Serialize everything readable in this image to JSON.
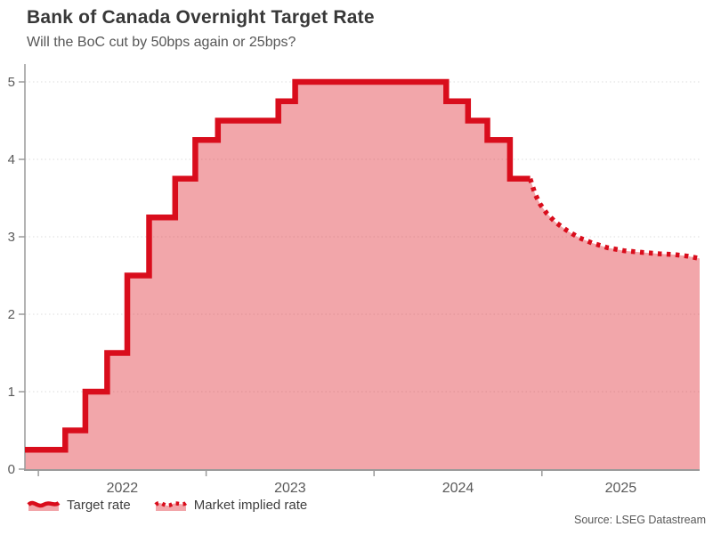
{
  "page": {
    "source": "Source: LSEG Datastream"
  },
  "chart_data": {
    "type": "area",
    "title": "Bank of Canada Overnight Target Rate",
    "subtitle": "Will the BoC cut by 50bps again or 25bps?",
    "legend_position": "bottom",
    "grid": "on",
    "x_axis": {
      "min": 2021.92,
      "max": 2025.94,
      "tick_years": [
        2022,
        2023,
        2024,
        2025
      ],
      "tick_labels": [
        "2022",
        "2023",
        "2024",
        "2025"
      ]
    },
    "y_axis": {
      "min": 0,
      "max": 5,
      "ticks": [
        0,
        1,
        2,
        3,
        4,
        5
      ],
      "tick_labels": [
        "0",
        "1",
        "2",
        "3",
        "4",
        "5"
      ]
    },
    "colors": {
      "line": "#d90d1c",
      "fill": "rgba(223,42,52,0.42)",
      "grid": "#dddddd",
      "axis": "#9a9a9a",
      "tick_text": "#595959"
    },
    "series": [
      {
        "name": "Target rate",
        "style": "solid-step",
        "points": [
          [
            2021.92,
            0.25
          ],
          [
            2022.16,
            0.5
          ],
          [
            2022.28,
            1.0
          ],
          [
            2022.41,
            1.5
          ],
          [
            2022.53,
            2.5
          ],
          [
            2022.66,
            3.25
          ],
          [
            2022.815,
            3.75
          ],
          [
            2022.935,
            4.25
          ],
          [
            2023.07,
            4.5
          ],
          [
            2023.43,
            4.75
          ],
          [
            2023.53,
            5.0
          ],
          [
            2024.43,
            4.75
          ],
          [
            2024.56,
            4.5
          ],
          [
            2024.675,
            4.25
          ],
          [
            2024.81,
            3.75
          ]
        ],
        "x_end": 2024.93
      },
      {
        "name": "Market implied rate",
        "style": "dotted",
        "points": [
          [
            2024.93,
            3.75
          ],
          [
            2024.96,
            3.55
          ],
          [
            2024.99,
            3.42
          ],
          [
            2025.03,
            3.3
          ],
          [
            2025.08,
            3.19
          ],
          [
            2025.15,
            3.08
          ],
          [
            2025.22,
            2.99
          ],
          [
            2025.3,
            2.92
          ],
          [
            2025.39,
            2.86
          ],
          [
            2025.49,
            2.82
          ],
          [
            2025.59,
            2.8
          ],
          [
            2025.7,
            2.78
          ],
          [
            2025.79,
            2.77
          ],
          [
            2025.87,
            2.75
          ],
          [
            2025.94,
            2.72
          ]
        ]
      }
    ]
  }
}
